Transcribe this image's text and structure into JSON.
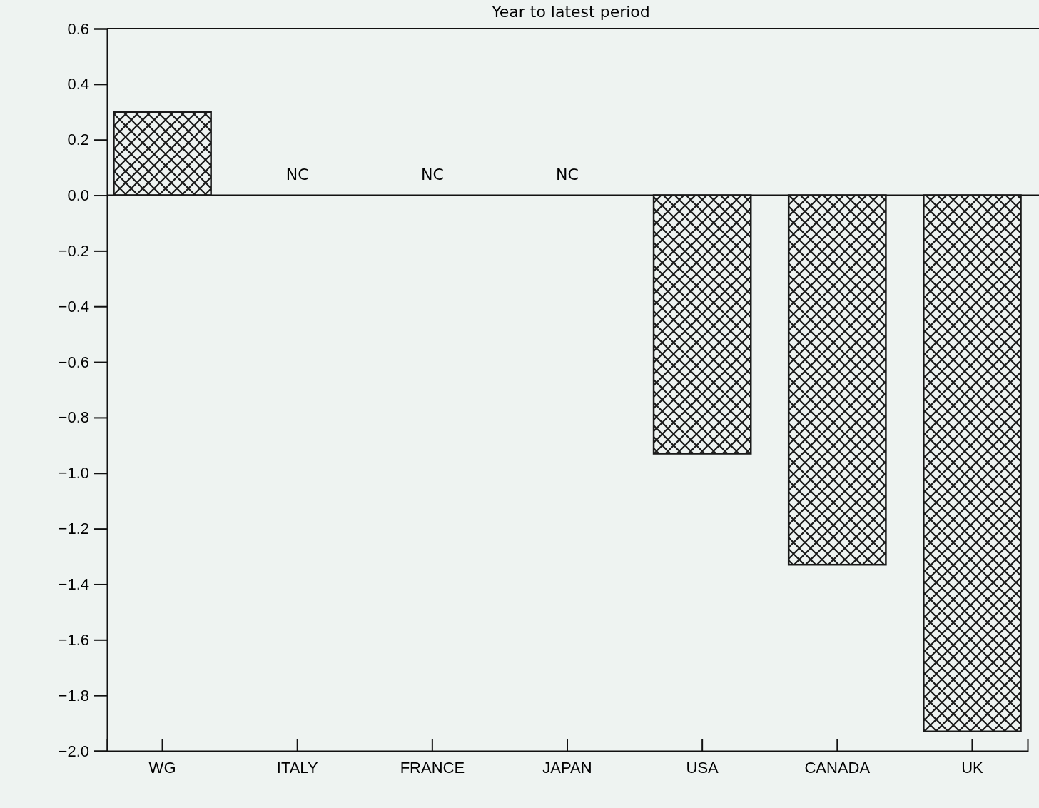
{
  "chart_data": {
    "type": "bar",
    "title": "Year to latest period",
    "categories": [
      "WG",
      "ITALY",
      "FRANCE",
      "JAPAN",
      "USA",
      "CANADA",
      "UK"
    ],
    "values": [
      0.3,
      null,
      null,
      null,
      -0.93,
      -1.33,
      -1.93
    ],
    "value_labels": [
      null,
      "NC",
      "NC",
      "NC",
      null,
      null,
      null
    ],
    "color": "#1a1a1a",
    "ylim": [
      -2.0,
      0.6
    ],
    "legend": false,
    "yticks": [
      0.6,
      0.4,
      0.2,
      {
        "value": 0,
        "label": "0.0"
      },
      {
        "value": -0.2,
        "label": "−0.2"
      },
      {
        "value": -0.4,
        "label": "−0.4"
      },
      {
        "value": -0.6,
        "label": "−0.6"
      },
      {
        "value": -0.8,
        "label": "−0.8"
      },
      {
        "value": -1.0,
        "label": "−1.0"
      },
      {
        "value": -1.2,
        "label": "−1.2"
      },
      {
        "value": -1.4,
        "label": "−1.4"
      },
      {
        "value": -1.6,
        "label": "−1.6"
      },
      {
        "value": -1.8,
        "label": "−1.8"
      },
      {
        "value": -2.0,
        "label": "−2.0"
      }
    ]
  }
}
